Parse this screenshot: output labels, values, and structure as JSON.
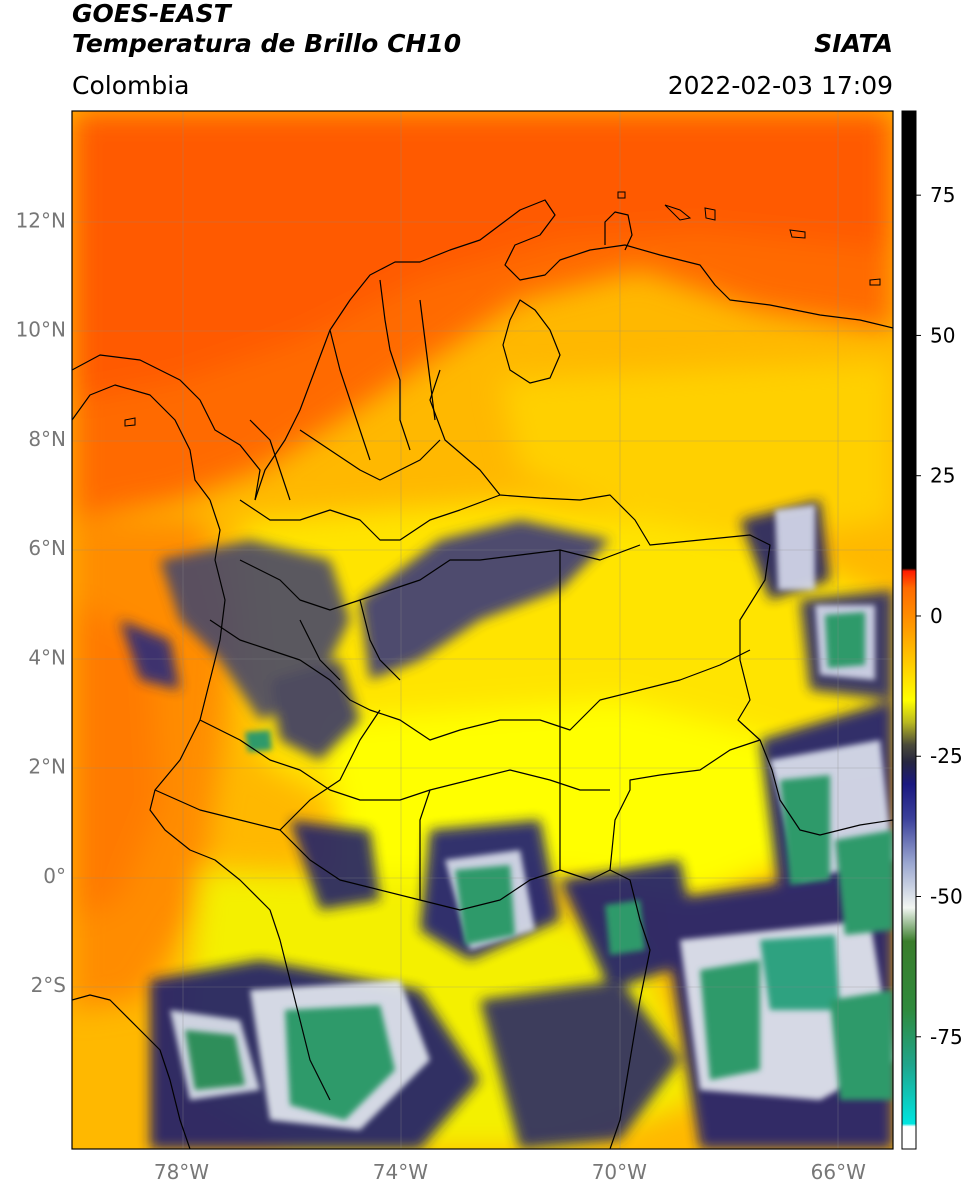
{
  "header": {
    "line1": "GOES-EAST",
    "line2": "Temperatura de Brillo CH10",
    "brand": "SIATA",
    "region": "Colombia",
    "timestamp": "2022-02-03 17:09"
  },
  "map": {
    "lon_range": [
      -80,
      -65
    ],
    "lat_range": [
      -5,
      14
    ],
    "lat_ticks": [
      {
        "value": 12,
        "label": "12°N"
      },
      {
        "value": 10,
        "label": "10°N"
      },
      {
        "value": 8,
        "label": "8°N"
      },
      {
        "value": 6,
        "label": "6°N"
      },
      {
        "value": 4,
        "label": "4°N"
      },
      {
        "value": 2,
        "label": "2°N"
      },
      {
        "value": 0,
        "label": "0°"
      },
      {
        "value": -2,
        "label": "2°S"
      }
    ],
    "lon_ticks": [
      {
        "value": -78,
        "label": "78°W"
      },
      {
        "value": -74,
        "label": "74°W"
      },
      {
        "value": -70,
        "label": "70°W"
      },
      {
        "value": -66,
        "label": "66°W"
      }
    ]
  },
  "colorbar": {
    "range": [
      -95,
      90
    ],
    "ticks": [
      {
        "value": 75,
        "label": "75"
      },
      {
        "value": 50,
        "label": "50"
      },
      {
        "value": 25,
        "label": "25"
      },
      {
        "value": 0,
        "label": "0"
      },
      {
        "value": -25,
        "label": "-25"
      },
      {
        "value": -50,
        "label": "-50"
      },
      {
        "value": -75,
        "label": "-75"
      }
    ],
    "stops": [
      {
        "value": -95,
        "color": "#ffffff"
      },
      {
        "value": -91,
        "color": "#ffffff"
      },
      {
        "value": -90.5,
        "color": "#00e5e0"
      },
      {
        "value": -80,
        "color": "#1fa58c"
      },
      {
        "value": -70,
        "color": "#2f8a3c"
      },
      {
        "value": -58,
        "color": "#3a7d2c"
      },
      {
        "value": -52,
        "color": "#f2f6f2"
      },
      {
        "value": -44,
        "color": "#9aa6d0"
      },
      {
        "value": -36,
        "color": "#3a3f9a"
      },
      {
        "value": -30,
        "color": "#1a1880"
      },
      {
        "value": -26,
        "color": "#262640"
      },
      {
        "value": -23,
        "color": "#4a4a3a"
      },
      {
        "value": -19,
        "color": "#b8b820"
      },
      {
        "value": -15,
        "color": "#ffff00"
      },
      {
        "value": -8,
        "color": "#ffc800"
      },
      {
        "value": -2,
        "color": "#ff9a00"
      },
      {
        "value": 5,
        "color": "#ff6a00"
      },
      {
        "value": 8,
        "color": "#ff1a00"
      },
      {
        "value": 8.5,
        "color": "#000000"
      },
      {
        "value": 90,
        "color": "#000000"
      }
    ]
  }
}
